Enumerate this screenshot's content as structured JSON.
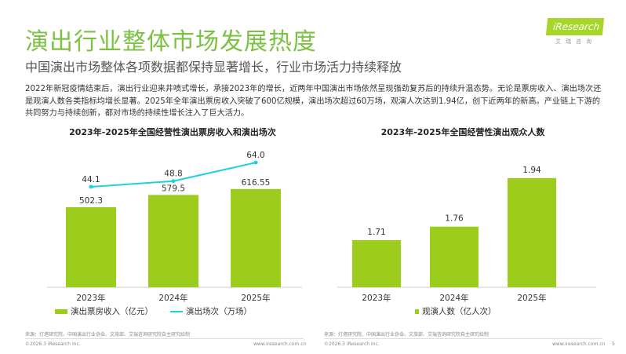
{
  "header": {
    "title": "演出行业整体市场发展热度",
    "subtitle": "中国演出市场整体各项数据都保持显著增长，行业市场活力持续释放",
    "logo": "iResearch",
    "logo_sub": "艾瑞咨询"
  },
  "body_text": "2022年新冠疫情结束后，演出行业迎来井喷式增长，承接2023年的增长，近两年中国演出市场依然呈现强劲复苏后的持续升温态势。无论是票房收入、演出场次还是观演人数各类指标均增长显著。2025年全年演出票房收入突破了600亿规模，演出场次超过60万场，观演人次达到1.94亿，创下近两年的新高。产业链上下游的共同努力与持续创新，都对市场的持续性增长注入了巨大活力。",
  "colors": {
    "bar": "#9ccc1c",
    "line": "#1fd0e0",
    "title": "#7cc242"
  },
  "chart_data": [
    {
      "type": "bar+line",
      "title": "2023年-2025年全国经营性演出票房收入和演出场次",
      "categories": [
        "2023年",
        "2024年",
        "2025年"
      ],
      "series": [
        {
          "name": "演出票房收入（亿元）",
          "type": "bar",
          "values": [
            502.3,
            579.5,
            616.55
          ],
          "labels": [
            "502.3",
            "579.5",
            "616.55"
          ]
        },
        {
          "name": "演出场次（万场）",
          "type": "line",
          "values": [
            44.1,
            48.8,
            64.0
          ],
          "labels": [
            "44.1",
            "48.8",
            "64.0"
          ]
        }
      ],
      "legend": "bottom"
    },
    {
      "type": "bar",
      "title": "2023年-2025年全国经营性演出观众人数",
      "categories": [
        "2023年",
        "2024年",
        "2025年"
      ],
      "series": [
        {
          "name": "观演人数（亿人次）",
          "type": "bar",
          "values": [
            1.71,
            1.76,
            1.94
          ],
          "labels": [
            "1.71",
            "1.76",
            "1.94"
          ]
        }
      ],
      "legend": "bottom"
    }
  ],
  "footer": {
    "source": "来源：灯塔研究院、中国演出行业协会、文旅部、艾瑞咨询研究院自主研究绘制",
    "copyright": "©2026.3 iResearch Inc.",
    "url": "www.iresearch.com.cn",
    "page": "5"
  }
}
